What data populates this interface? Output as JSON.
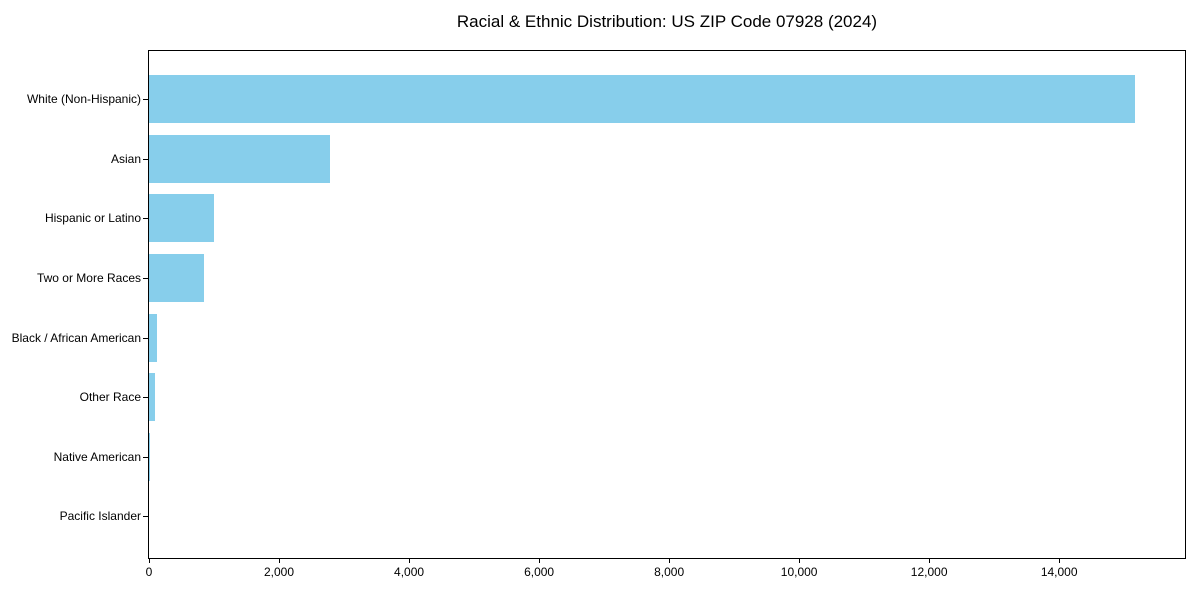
{
  "chart_data": {
    "type": "bar",
    "orientation": "horizontal",
    "title": "Racial & Ethnic Distribution: US ZIP Code 07928 (2024)",
    "categories": [
      "White (Non-Hispanic)",
      "Asian",
      "Hispanic or Latino",
      "Two or More Races",
      "Black / African American",
      "Other Race",
      "Native American",
      "Pacific Islander"
    ],
    "values": [
      15170,
      2790,
      1000,
      850,
      120,
      95,
      10,
      0
    ],
    "bar_color": "#87CEEB",
    "xlabel": "",
    "ylabel": "",
    "xlim": [
      0,
      15935
    ],
    "x_ticks": [
      0,
      2000,
      4000,
      6000,
      8000,
      10000,
      12000,
      14000
    ],
    "x_tick_labels": [
      "0",
      "2,000",
      "4,000",
      "6,000",
      "8,000",
      "10,000",
      "12,000",
      "14,000"
    ],
    "grid": false,
    "legend": null,
    "background_color": "#ffffff",
    "axis_color": "#000000"
  }
}
